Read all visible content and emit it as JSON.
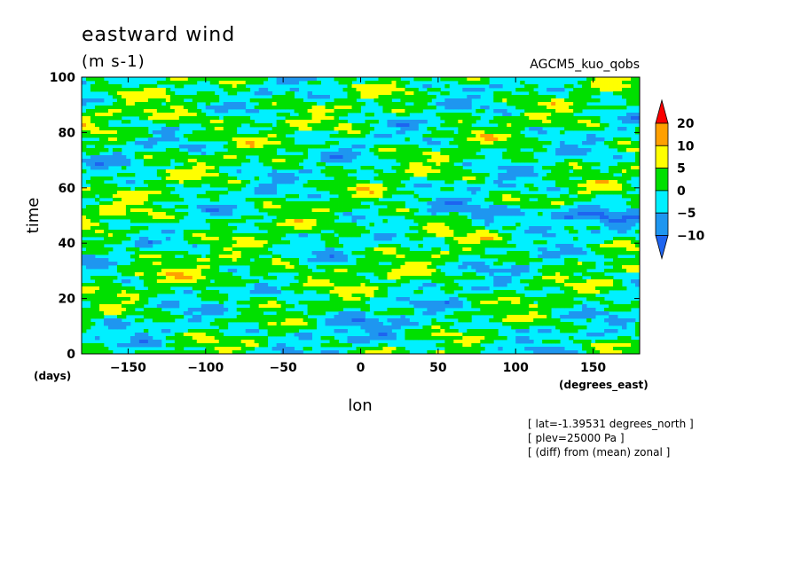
{
  "chart_data": {
    "type": "heatmap",
    "title": "eastward wind",
    "units": "(m s-1)",
    "run_label": "AGCM5_kuo_qobs",
    "xlabel": "lon",
    "xunit": "(degrees_east)",
    "ylabel": "time",
    "yunit": "(days)",
    "xlim": [
      -180,
      180
    ],
    "ylim": [
      0,
      100
    ],
    "xticks": [
      -150,
      -100,
      -50,
      0,
      50,
      100,
      150
    ],
    "yticks": [
      0,
      20,
      40,
      60,
      80,
      100
    ],
    "colorbar": {
      "levels": [
        -10,
        -5,
        0,
        5,
        10,
        20
      ],
      "colors": [
        "#1E64F0",
        "#1E96F0",
        "#00F0FF",
        "#00E000",
        "#FFFF00",
        "#FFA000",
        "#FA0000"
      ],
      "extend": "both"
    },
    "notes": [
      "[ lat=-1.39531 degrees_north ]",
      "[ plev=25000 Pa ]",
      "[ (diff) from (mean) zonal ]"
    ]
  }
}
